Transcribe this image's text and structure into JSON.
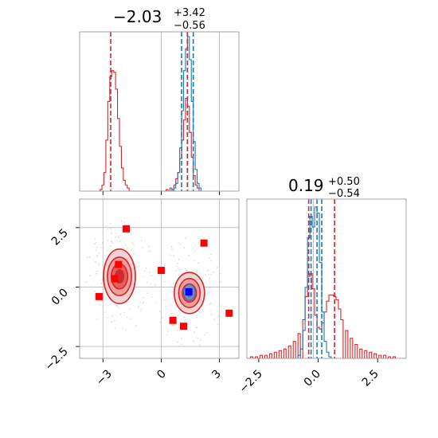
{
  "chart_data": {
    "type": "corner",
    "colors": {
      "red": "#d62728",
      "blue": "#1f77b4",
      "red_fill": "#e8898a",
      "red_dark": "#b01010",
      "blue_marker": "#0000ff"
    },
    "x_range": [
      -4.2,
      4.0
    ],
    "y_range": [
      -3.0,
      3.7
    ],
    "panels": [
      {
        "id": "top-left",
        "type": "histogram",
        "title_main": "−2.03",
        "title_sup": "+3.42",
        "title_sub": "−0.56",
        "xlim": [
          -4.2,
          4.0
        ],
        "xticks": [
          -3,
          0,
          3
        ],
        "tick_labels_visible": false,
        "vlines_red": [
          -2.6,
          1.35
        ],
        "vlines_blue": [
          1.05,
          1.35,
          1.65
        ],
        "vlines_gray": [
          0.0,
          3.0
        ],
        "series": [
          {
            "name": "",
            "color": "red",
            "bins": [
              [
                -3.1,
                0.01
              ],
              [
                -3.0,
                0.04
              ],
              [
                -2.9,
                0.12
              ],
              [
                -2.8,
                0.33
              ],
              [
                -2.7,
                0.58
              ],
              [
                -2.6,
                0.74
              ],
              [
                -2.5,
                0.78
              ],
              [
                -2.4,
                0.77
              ],
              [
                -2.3,
                0.66
              ],
              [
                -2.2,
                0.47
              ],
              [
                -2.1,
                0.29
              ],
              [
                -2.0,
                0.15
              ],
              [
                -1.9,
                0.07
              ],
              [
                -1.8,
                0.04
              ],
              [
                -1.7,
                0.02
              ],
              [
                0.3,
                0.01
              ],
              [
                0.5,
                0.02
              ],
              [
                0.7,
                0.04
              ],
              [
                0.8,
                0.08
              ],
              [
                0.9,
                0.12
              ],
              [
                1.0,
                0.21
              ],
              [
                1.1,
                0.33
              ],
              [
                1.2,
                0.46
              ],
              [
                1.3,
                0.6
              ],
              [
                1.4,
                0.55
              ],
              [
                1.5,
                0.38
              ],
              [
                1.6,
                0.22
              ],
              [
                1.7,
                0.1
              ],
              [
                1.8,
                0.04
              ],
              [
                1.9,
                0.02
              ]
            ]
          },
          {
            "name": "",
            "color": "blue",
            "bins": [
              [
                0.6,
                0.01
              ],
              [
                0.7,
                0.02
              ],
              [
                0.8,
                0.05
              ],
              [
                0.9,
                0.12
              ],
              [
                1.0,
                0.28
              ],
              [
                1.1,
                0.52
              ],
              [
                1.2,
                0.78
              ],
              [
                1.3,
                0.92
              ],
              [
                1.4,
                1.0
              ],
              [
                1.5,
                0.85
              ],
              [
                1.6,
                0.58
              ],
              [
                1.7,
                0.32
              ],
              [
                1.8,
                0.14
              ],
              [
                1.9,
                0.05
              ],
              [
                2.0,
                0.02
              ]
            ]
          }
        ]
      },
      {
        "id": "bottom-right",
        "type": "histogram",
        "title_main": "0.19",
        "title_sup": "+0.50",
        "title_sub": "−0.54",
        "xlim": [
          -3.0,
          3.7
        ],
        "xticks": [
          -2.5,
          0.0,
          2.5
        ],
        "xtick_labels": [
          "−2.5",
          "0.0",
          "2.5"
        ],
        "vlines_red": [
          -0.4,
          0.69
        ],
        "vlines_blue": [
          -0.3,
          -0.05,
          0.15
        ],
        "vlines_gray": [
          -0.2
        ],
        "series": [
          {
            "name": "",
            "color": "red",
            "bins": [
              [
                -2.8,
                0.01
              ],
              [
                -2.6,
                0.01
              ],
              [
                -2.4,
                0.02
              ],
              [
                -2.2,
                0.02
              ],
              [
                -2.0,
                0.03
              ],
              [
                -1.8,
                0.04
              ],
              [
                -1.6,
                0.05
              ],
              [
                -1.4,
                0.06
              ],
              [
                -1.2,
                0.08
              ],
              [
                -1.0,
                0.11
              ],
              [
                -0.8,
                0.16
              ],
              [
                -0.6,
                0.25
              ],
              [
                -0.5,
                0.4
              ],
              [
                -0.4,
                0.53
              ],
              [
                -0.3,
                0.55
              ],
              [
                -0.2,
                0.45
              ],
              [
                -0.1,
                0.28
              ],
              [
                0.0,
                0.2
              ],
              [
                0.1,
                0.19
              ],
              [
                0.2,
                0.23
              ],
              [
                0.3,
                0.3
              ],
              [
                0.4,
                0.37
              ],
              [
                0.5,
                0.41
              ],
              [
                0.6,
                0.41
              ],
              [
                0.7,
                0.4
              ],
              [
                0.8,
                0.38
              ],
              [
                0.9,
                0.32
              ],
              [
                1.0,
                0.25
              ],
              [
                1.2,
                0.18
              ],
              [
                1.4,
                0.13
              ],
              [
                1.6,
                0.09
              ],
              [
                1.8,
                0.06
              ],
              [
                2.0,
                0.05
              ],
              [
                2.2,
                0.04
              ],
              [
                2.4,
                0.03
              ],
              [
                2.6,
                0.02
              ],
              [
                2.8,
                0.02
              ],
              [
                3.0,
                0.01
              ],
              [
                3.2,
                0.01
              ]
            ]
          },
          {
            "name": "",
            "color": "blue",
            "bins": [
              [
                -0.8,
                0.02
              ],
              [
                -0.7,
                0.06
              ],
              [
                -0.6,
                0.18
              ],
              [
                -0.5,
                0.46
              ],
              [
                -0.4,
                0.78
              ],
              [
                -0.3,
                0.92
              ],
              [
                -0.2,
                0.85
              ],
              [
                -0.1,
                0.98
              ],
              [
                0.0,
                0.94
              ],
              [
                0.1,
                0.62
              ],
              [
                0.2,
                0.3
              ],
              [
                0.3,
                0.11
              ],
              [
                0.4,
                0.04
              ],
              [
                0.5,
                0.01
              ]
            ]
          }
        ]
      },
      {
        "id": "bottom-left",
        "type": "scatter",
        "xlim": [
          -4.2,
          4.0
        ],
        "ylim": [
          -3.0,
          3.7
        ],
        "xticks": [
          -3,
          0,
          3
        ],
        "xtick_labels": [
          "−3",
          "0",
          "3"
        ],
        "yticks": [
          -2.5,
          0.0,
          2.5
        ],
        "ytick_labels": [
          "−2.5",
          "0.0",
          "2.5"
        ],
        "gridlines_x": [
          -3,
          0,
          3
        ],
        "gridlines_y": [
          -2.5,
          0.0,
          2.5
        ],
        "red_squares": [
          [
            -1.8,
            2.45
          ],
          [
            2.2,
            1.85
          ],
          [
            -2.2,
            0.95
          ],
          [
            0.0,
            0.7
          ],
          [
            -2.4,
            0.35
          ],
          [
            -3.2,
            -0.4
          ],
          [
            3.5,
            -1.1
          ],
          [
            0.6,
            -1.4
          ],
          [
            1.15,
            -1.65
          ]
        ],
        "blue_square": [
          1.42,
          -0.2
        ],
        "contours_red": [
          {
            "cx": -2.15,
            "cy": 0.45,
            "rx": [
              0.22,
              0.42,
              0.62,
              0.82
            ],
            "ry": [
              0.32,
              0.62,
              0.95,
              1.35
            ]
          },
          {
            "cx": 1.45,
            "cy": -0.25,
            "rx": [
              0.18,
              0.36,
              0.55,
              0.78
            ],
            "ry": [
              0.22,
              0.45,
              0.72,
              1.02
            ]
          }
        ],
        "contours_blue": [
          {
            "cx": 1.45,
            "cy": -0.22,
            "rx": [
              0.15,
              0.3
            ],
            "ry": [
              0.2,
              0.4
            ]
          }
        ]
      }
    ]
  }
}
